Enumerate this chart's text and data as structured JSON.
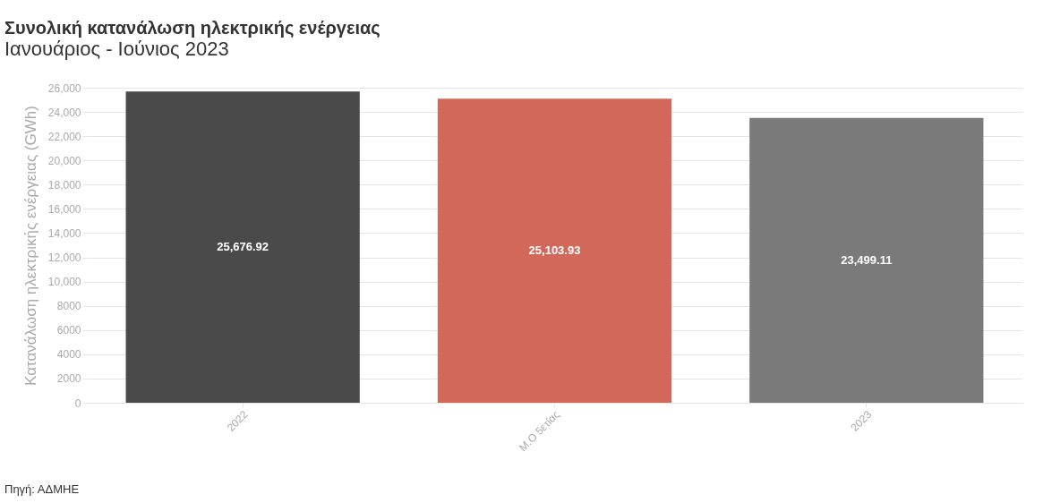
{
  "chart_data": {
    "type": "bar",
    "title": "Συνολική κατανάλωση ηλεκτρικής ενέργειας",
    "subtitle": "Ιανουάριος - Ιούνιος 2023",
    "ylabel": "Κατανάλωση ηλεκτρικής ενέργειας (GWh)",
    "categories": [
      "2022",
      "Μ.Ο 5ετίας",
      "2023"
    ],
    "values": [
      25676.92,
      25103.93,
      23499.11
    ],
    "colors": [
      "#404040",
      "#d06050",
      "#737373"
    ],
    "value_labels": [
      "25,676.92",
      "25,103.93",
      "23,499.11"
    ],
    "ylim": [
      0,
      26000
    ],
    "yticks": [
      0,
      2000,
      4000,
      6000,
      8000,
      {
        "value": 10000,
        "label": "10,000"
      },
      {
        "value": 12000,
        "label": "12,000"
      },
      {
        "value": 14000,
        "label": "14,000"
      },
      {
        "value": 16000,
        "label": "16,000"
      },
      {
        "value": 18000,
        "label": "18,000"
      },
      {
        "value": 20000,
        "label": "20,000"
      },
      {
        "value": 22000,
        "label": "22,000"
      },
      {
        "value": 24000,
        "label": "24,000"
      },
      {
        "value": 26000,
        "label": "26,000"
      }
    ],
    "grid": "y",
    "annotations": [
      "Πηγή: ΑΔΜΗΕ"
    ]
  }
}
